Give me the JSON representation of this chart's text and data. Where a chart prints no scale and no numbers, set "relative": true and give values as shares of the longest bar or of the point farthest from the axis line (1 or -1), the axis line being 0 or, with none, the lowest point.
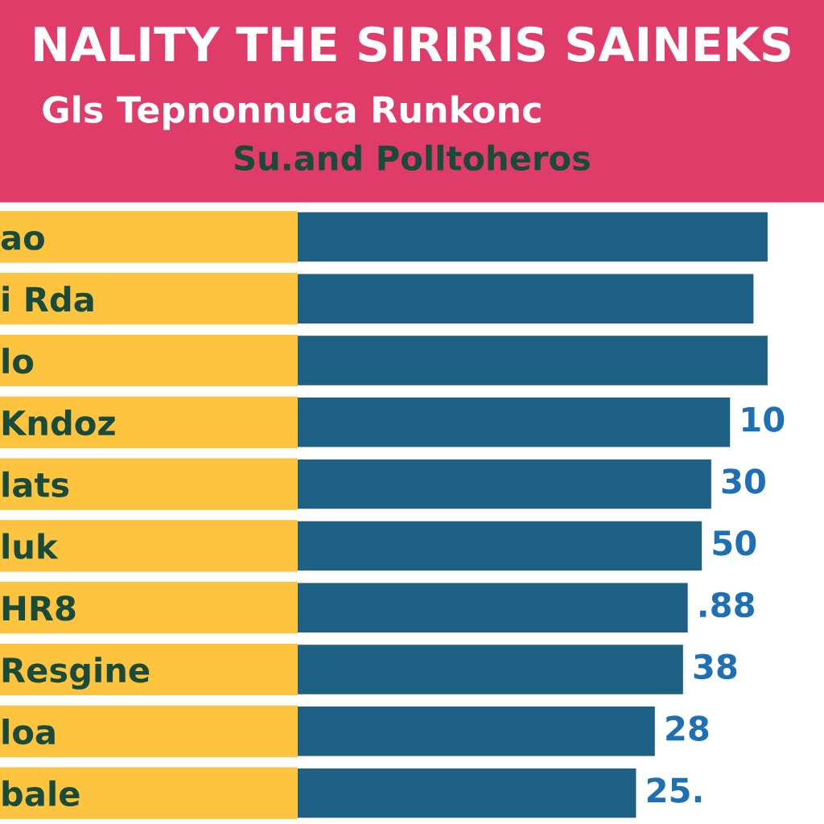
{
  "chart_data": {
    "type": "bar",
    "orientation": "horizontal",
    "relative": true,
    "tick_labels": "y",
    "title": "NALITY THE SIRIRIS SAINEKS",
    "subtitle": "Gls Tepnonnuca Runkonc",
    "annotations": [
      "Su.and Polltoheros",
      {
        "text": "10",
        "x": 0.92,
        "y": "Kndoz"
      },
      {
        "text": "30",
        "x": 0.88,
        "y": "lats"
      },
      {
        "text": "50",
        "x": 0.86,
        "y": "luk"
      },
      {
        "text": ".88",
        "x": 0.83,
        "y": "HR8"
      },
      {
        "text": "38",
        "x": 0.82,
        "y": "Resgine"
      },
      {
        "text": "28",
        "x": 0.76,
        "y": "loa"
      },
      {
        "text": "25.",
        "x": 0.72,
        "y": "bale"
      }
    ],
    "categories": [
      "ao",
      "i Rda",
      "lo",
      "Kndoz",
      "lats",
      "luk",
      "HR8",
      "Resgine",
      "loa",
      "bale"
    ],
    "values": [
      1,
      0.97,
      1,
      0.92,
      0.88,
      0.86,
      0.83,
      0.82,
      0.76,
      0.72
    ],
    "color": "#1f6085"
  }
}
